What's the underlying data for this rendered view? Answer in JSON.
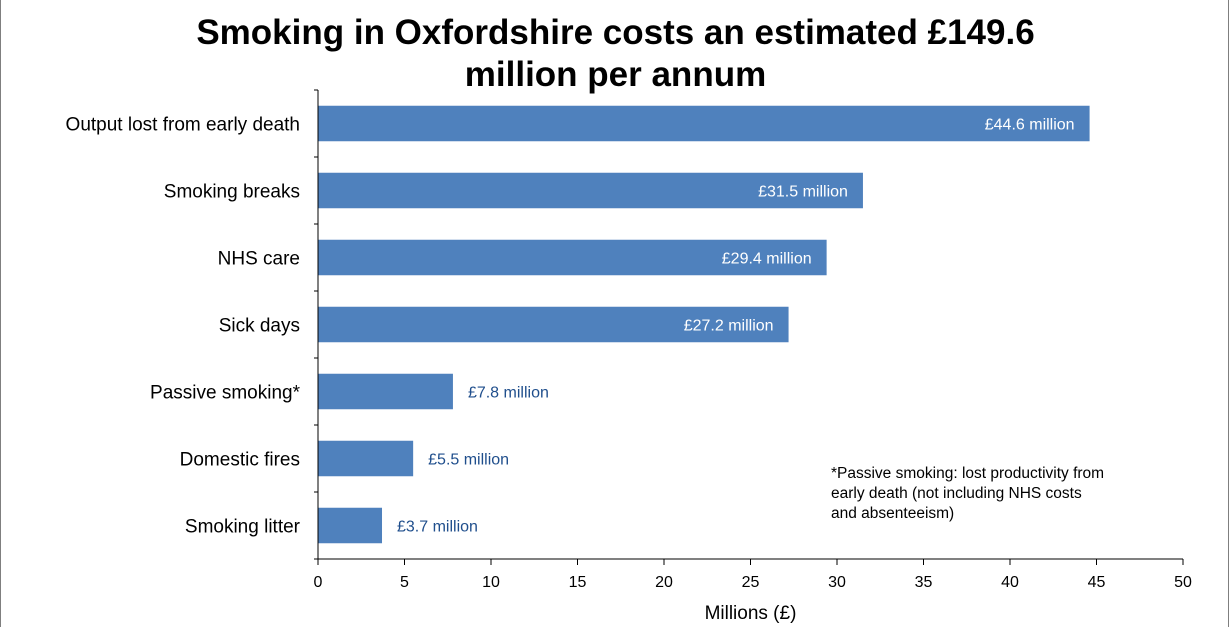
{
  "chart_data": {
    "type": "bar",
    "orientation": "horizontal",
    "title_lines": [
      "Smoking in  Oxfordshire costs an estimated  £149.6",
      "million per annum"
    ],
    "categories": [
      "Output lost from early death",
      "Smoking breaks",
      "NHS care",
      "Sick days",
      "Passive smoking*",
      "Domestic fires",
      "Smoking litter"
    ],
    "values": [
      44.6,
      31.5,
      29.4,
      27.2,
      7.8,
      5.5,
      3.7
    ],
    "data_labels": [
      "£44.6 million",
      "£31.5 million",
      "£29.4 million",
      "£27.2 million",
      "£7.8 million",
      "£5.5 million",
      "£3.7 million"
    ],
    "xlabel": "Millions (£)",
    "ylabel": "",
    "xlim": [
      0,
      50
    ],
    "x_ticks": [
      0,
      5,
      10,
      15,
      20,
      25,
      30,
      35,
      40,
      45,
      50
    ],
    "grid": false,
    "bar_color": "#4f81bd",
    "inside_label_color": "#ffffff",
    "outside_label_color": "#1f4e8c",
    "note_lines": [
      "*Passive smoking: lost productivity from",
      "early death (not including NHS costs",
      "and absenteeism)"
    ]
  }
}
